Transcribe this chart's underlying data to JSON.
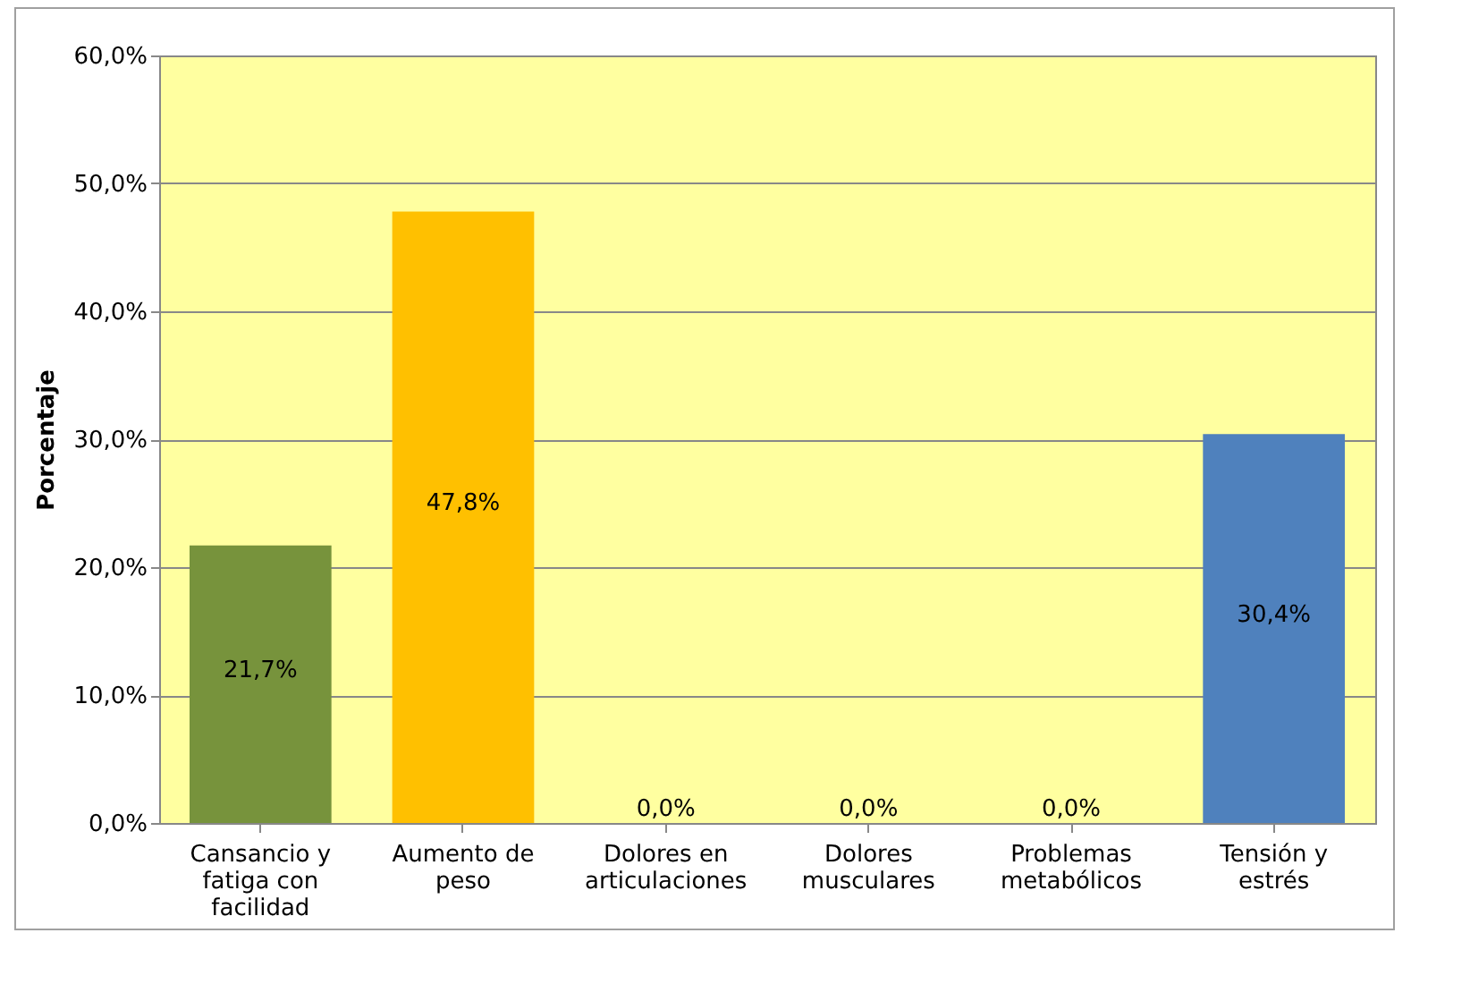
{
  "chart_data": {
    "type": "bar",
    "ylabel": "Porcentaje",
    "categories": [
      "Cansancio y fatiga con facilidad",
      "Aumento de peso",
      "Dolores en articulaciones",
      "Dolores musculares",
      "Problemas metabólicos",
      "Tensión y estrés"
    ],
    "values": [
      21.7,
      47.8,
      0,
      0,
      0,
      30.4
    ],
    "colors": [
      "#77933c",
      "#ffc000",
      "#4f81bd",
      "#4f81bd",
      "#4f81bd",
      "#4f81bd"
    ],
    "value_labels": [
      "21,7%",
      "47,8%",
      "0,0%",
      "0,0%",
      "0,0%",
      "30,4%"
    ],
    "ylim": [
      0,
      60
    ],
    "yticks": [
      {
        "value": 0,
        "label": "0,0%"
      },
      {
        "value": 10,
        "label": "10,0%"
      },
      {
        "value": 20,
        "label": "20,0%"
      },
      {
        "value": 30,
        "label": "30,0%"
      },
      {
        "value": 40,
        "label": "40,0%"
      },
      {
        "value": 50,
        "label": "50,0%"
      },
      {
        "value": 60,
        "label": "60,0%"
      }
    ],
    "grid": "y"
  }
}
